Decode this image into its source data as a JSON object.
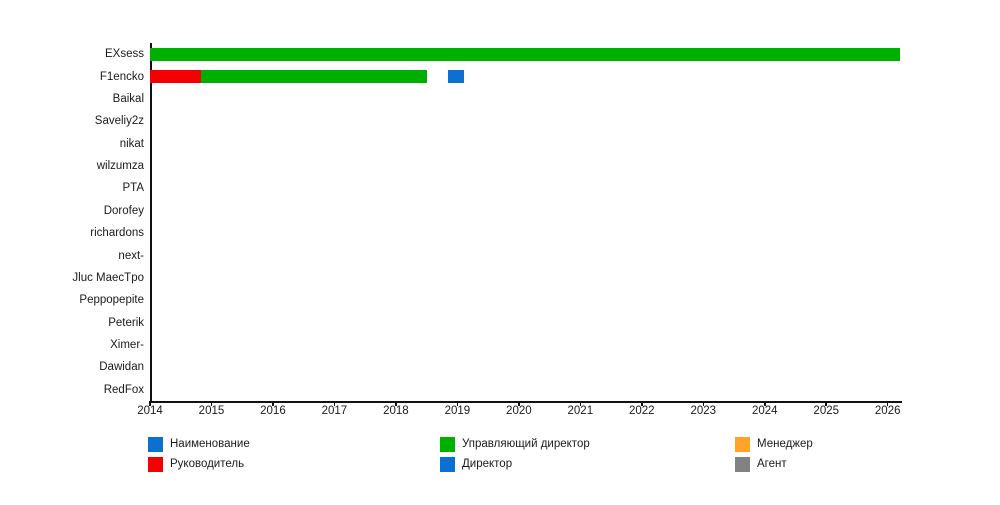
{
  "chart_data": {
    "type": "gantt",
    "title": "",
    "categories": [
      "EXsess",
      "F1encko",
      "Baikal",
      "Saveliy2z",
      "nikat",
      "wilzumza",
      "PTA",
      "Dorofey",
      "richardons",
      "next-",
      "Jluc MaecTpo",
      "Peppopepite",
      "Peterik",
      "Ximer-",
      "Dawidan",
      "RedFox"
    ],
    "x_ticks": [
      2014,
      2015,
      2016,
      2017,
      2018,
      2019,
      2020,
      2021,
      2022,
      2023,
      2024,
      2025,
      2026
    ],
    "xlim": [
      2014,
      2026.2
    ],
    "grid": false,
    "background_color": "#ffffff",
    "axis_color": "#111111",
    "text_color": "#1a1a1a",
    "series": [
      {
        "name": "Руководитель",
        "color": "#f40000",
        "bars": [
          {
            "category": "F1encko",
            "start": 2014.0,
            "end": 2014.83
          }
        ]
      },
      {
        "name": "Управляющий директор",
        "color": "#00b000",
        "bars": [
          {
            "category": "EXsess",
            "start": 2014.0,
            "end": 2026.2
          },
          {
            "category": "F1encko",
            "start": 2014.83,
            "end": 2018.5
          }
        ]
      },
      {
        "name": "Директор",
        "color": "#0b70d2",
        "bars": [
          {
            "category": "F1encko",
            "start": 2018.84,
            "end": 2019.1
          }
        ]
      }
    ],
    "legend": {
      "position": "bottom",
      "columns": 3,
      "items": [
        {
          "label": "Наименование",
          "color": "#0b70d2"
        },
        {
          "label": "Руководитель",
          "color": "#f40000"
        },
        {
          "label": "Управляющий директор",
          "color": "#00b000"
        },
        {
          "label": "Директор",
          "color": "#0b70d2"
        },
        {
          "label": "Менеджер",
          "color": "#ffa429"
        },
        {
          "label": "Агент",
          "color": "#828282"
        }
      ]
    }
  }
}
